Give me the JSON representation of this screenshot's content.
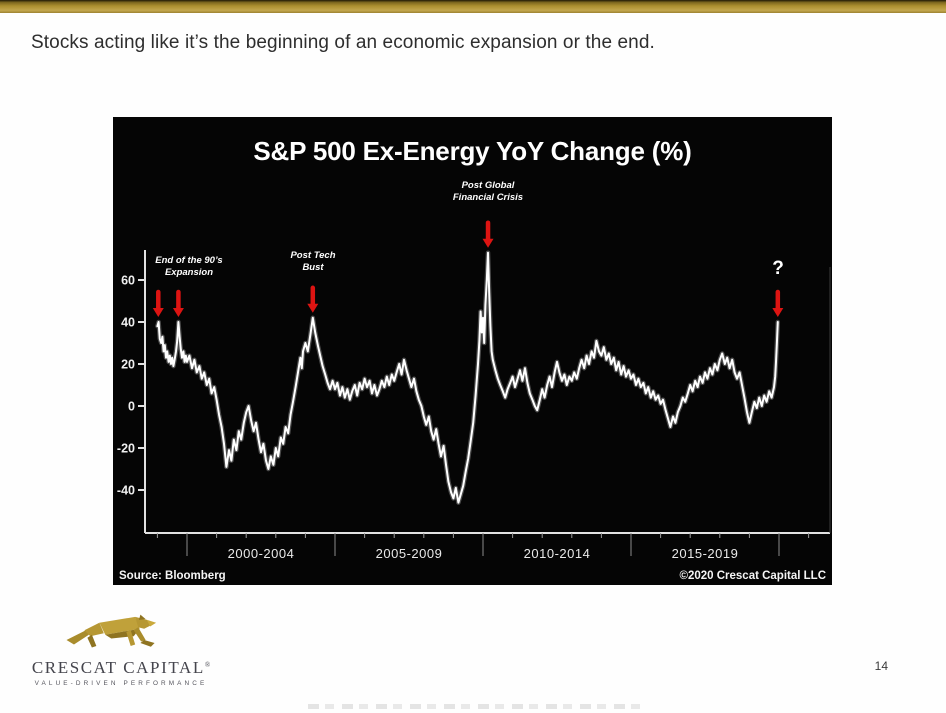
{
  "slide": {
    "heading": "Stocks acting like it’s the beginning of an economic expansion or the end.",
    "page_number": "14"
  },
  "logo": {
    "name": "CRESCAT CAPITAL",
    "registered": "®",
    "tagline": "VALUE-DRIVEN PERFORMANCE",
    "brand_gold": "#ab8e2f"
  },
  "chart_data": {
    "type": "line",
    "title": "S&P 500 Ex-Energy YoY Change (%)",
    "source": "Source: Bloomberg",
    "copyright": "©2020 Crescat Capital LLC",
    "background": "#050505",
    "line_color": "#ffffff",
    "arrow_color": "#dd1412",
    "grid": false,
    "legend": "none",
    "ylim": [
      -55,
      80
    ],
    "yticks": [
      60,
      40,
      20,
      0,
      -20,
      -40
    ],
    "x_separator_years": [
      2000,
      2005,
      2010,
      2015,
      2020
    ],
    "x_period_labels": [
      "2000-2004",
      "2005-2009",
      "2010-2014",
      "2015-2019"
    ],
    "annotations": [
      {
        "id": "nineties",
        "line1": "End of the 90’s",
        "line2": "Expansion",
        "arrow_years": [
          1999.03,
          1999.71
        ],
        "points_to_value": 40
      },
      {
        "id": "tech",
        "line1": "Post Tech",
        "line2": "Bust",
        "arrow_years": [
          2004.25
        ],
        "points_to_value": 42
      },
      {
        "id": "gfc",
        "line1": "Post Global",
        "line2": "Financial Crisis",
        "arrow_years": [
          2010.17
        ],
        "points_to_value": 73
      },
      {
        "id": "question",
        "line1": "?",
        "line2": "",
        "arrow_years": [
          2019.96
        ],
        "points_to_value": 40
      }
    ],
    "series": [
      {
        "name": "S&P 500 Ex-Energy YoY Change (%)",
        "points": [
          [
            1999.0,
            38
          ],
          [
            1999.04,
            40
          ],
          [
            1999.08,
            32
          ],
          [
            1999.13,
            30
          ],
          [
            1999.17,
            33
          ],
          [
            1999.21,
            26
          ],
          [
            1999.25,
            29
          ],
          [
            1999.29,
            23
          ],
          [
            1999.33,
            26
          ],
          [
            1999.38,
            21
          ],
          [
            1999.42,
            24
          ],
          [
            1999.46,
            20
          ],
          [
            1999.5,
            23
          ],
          [
            1999.54,
            19
          ],
          [
            1999.58,
            22
          ],
          [
            1999.63,
            26
          ],
          [
            1999.67,
            31
          ],
          [
            1999.71,
            40
          ],
          [
            1999.75,
            33
          ],
          [
            1999.79,
            27
          ],
          [
            1999.83,
            23
          ],
          [
            1999.88,
            26
          ],
          [
            1999.92,
            21
          ],
          [
            1999.96,
            24
          ],
          [
            2000.0,
            21
          ],
          [
            2000.08,
            24
          ],
          [
            2000.17,
            18
          ],
          [
            2000.25,
            22
          ],
          [
            2000.33,
            16
          ],
          [
            2000.42,
            19
          ],
          [
            2000.5,
            13
          ],
          [
            2000.58,
            16
          ],
          [
            2000.67,
            10
          ],
          [
            2000.75,
            13
          ],
          [
            2000.83,
            6
          ],
          [
            2000.92,
            9
          ],
          [
            2001.0,
            3
          ],
          [
            2001.08,
            -4
          ],
          [
            2001.17,
            -10
          ],
          [
            2001.25,
            -18
          ],
          [
            2001.33,
            -29
          ],
          [
            2001.42,
            -21
          ],
          [
            2001.5,
            -26
          ],
          [
            2001.58,
            -16
          ],
          [
            2001.67,
            -21
          ],
          [
            2001.75,
            -12
          ],
          [
            2001.83,
            -16
          ],
          [
            2001.92,
            -8
          ],
          [
            2002.0,
            -3
          ],
          [
            2002.08,
            0
          ],
          [
            2002.17,
            -7
          ],
          [
            2002.25,
            -12
          ],
          [
            2002.33,
            -8
          ],
          [
            2002.42,
            -16
          ],
          [
            2002.5,
            -22
          ],
          [
            2002.58,
            -18
          ],
          [
            2002.67,
            -26
          ],
          [
            2002.75,
            -30
          ],
          [
            2002.83,
            -24
          ],
          [
            2002.92,
            -28
          ],
          [
            2003.0,
            -20
          ],
          [
            2003.08,
            -24
          ],
          [
            2003.17,
            -15
          ],
          [
            2003.25,
            -18
          ],
          [
            2003.33,
            -10
          ],
          [
            2003.42,
            -13
          ],
          [
            2003.5,
            -4
          ],
          [
            2003.58,
            2
          ],
          [
            2003.67,
            9
          ],
          [
            2003.75,
            16
          ],
          [
            2003.83,
            23
          ],
          [
            2003.88,
            18
          ],
          [
            2003.92,
            26
          ],
          [
            2004.0,
            30
          ],
          [
            2004.08,
            26
          ],
          [
            2004.17,
            34
          ],
          [
            2004.25,
            42
          ],
          [
            2004.33,
            35
          ],
          [
            2004.42,
            29
          ],
          [
            2004.5,
            24
          ],
          [
            2004.58,
            19
          ],
          [
            2004.67,
            15
          ],
          [
            2004.75,
            11
          ],
          [
            2004.83,
            8
          ],
          [
            2004.92,
            12
          ],
          [
            2005.0,
            8
          ],
          [
            2005.08,
            11
          ],
          [
            2005.17,
            5
          ],
          [
            2005.25,
            9
          ],
          [
            2005.33,
            4
          ],
          [
            2005.42,
            8
          ],
          [
            2005.5,
            3
          ],
          [
            2005.58,
            7
          ],
          [
            2005.67,
            10
          ],
          [
            2005.75,
            5
          ],
          [
            2005.83,
            11
          ],
          [
            2005.92,
            8
          ],
          [
            2006.0,
            13
          ],
          [
            2006.08,
            9
          ],
          [
            2006.17,
            12
          ],
          [
            2006.25,
            6
          ],
          [
            2006.33,
            10
          ],
          [
            2006.42,
            5
          ],
          [
            2006.5,
            8
          ],
          [
            2006.58,
            12
          ],
          [
            2006.67,
            9
          ],
          [
            2006.75,
            14
          ],
          [
            2006.83,
            10
          ],
          [
            2006.92,
            15
          ],
          [
            2007.0,
            12
          ],
          [
            2007.08,
            16
          ],
          [
            2007.17,
            20
          ],
          [
            2007.25,
            15
          ],
          [
            2007.33,
            22
          ],
          [
            2007.42,
            17
          ],
          [
            2007.5,
            13
          ],
          [
            2007.58,
            9
          ],
          [
            2007.67,
            13
          ],
          [
            2007.75,
            7
          ],
          [
            2007.83,
            3
          ],
          [
            2007.92,
            0
          ],
          [
            2008.0,
            -5
          ],
          [
            2008.08,
            -9
          ],
          [
            2008.17,
            -5
          ],
          [
            2008.25,
            -12
          ],
          [
            2008.33,
            -16
          ],
          [
            2008.42,
            -11
          ],
          [
            2008.5,
            -18
          ],
          [
            2008.58,
            -24
          ],
          [
            2008.67,
            -19
          ],
          [
            2008.75,
            -28
          ],
          [
            2008.83,
            -36
          ],
          [
            2008.92,
            -41
          ],
          [
            2009.0,
            -44
          ],
          [
            2009.08,
            -39
          ],
          [
            2009.17,
            -46
          ],
          [
            2009.25,
            -42
          ],
          [
            2009.33,
            -38
          ],
          [
            2009.42,
            -31
          ],
          [
            2009.5,
            -25
          ],
          [
            2009.58,
            -17
          ],
          [
            2009.67,
            -8
          ],
          [
            2009.75,
            5
          ],
          [
            2009.83,
            20
          ],
          [
            2009.88,
            31
          ],
          [
            2009.92,
            45
          ],
          [
            2009.96,
            35
          ],
          [
            2010.0,
            42
          ],
          [
            2010.04,
            30
          ],
          [
            2010.08,
            48
          ],
          [
            2010.13,
            60
          ],
          [
            2010.17,
            73
          ],
          [
            2010.21,
            54
          ],
          [
            2010.25,
            38
          ],
          [
            2010.29,
            26
          ],
          [
            2010.33,
            22
          ],
          [
            2010.42,
            17
          ],
          [
            2010.5,
            13
          ],
          [
            2010.58,
            10
          ],
          [
            2010.67,
            7
          ],
          [
            2010.75,
            4
          ],
          [
            2010.83,
            8
          ],
          [
            2010.92,
            11
          ],
          [
            2011.0,
            14
          ],
          [
            2011.08,
            9
          ],
          [
            2011.17,
            13
          ],
          [
            2011.25,
            17
          ],
          [
            2011.33,
            12
          ],
          [
            2011.42,
            18
          ],
          [
            2011.5,
            11
          ],
          [
            2011.58,
            6
          ],
          [
            2011.67,
            3
          ],
          [
            2011.75,
            0
          ],
          [
            2011.83,
            -2
          ],
          [
            2011.92,
            3
          ],
          [
            2012.0,
            8
          ],
          [
            2012.08,
            4
          ],
          [
            2012.17,
            10
          ],
          [
            2012.25,
            14
          ],
          [
            2012.33,
            9
          ],
          [
            2012.42,
            16
          ],
          [
            2012.5,
            21
          ],
          [
            2012.58,
            16
          ],
          [
            2012.67,
            12
          ],
          [
            2012.75,
            15
          ],
          [
            2012.83,
            10
          ],
          [
            2012.92,
            14
          ],
          [
            2013.0,
            12
          ],
          [
            2013.08,
            16
          ],
          [
            2013.17,
            13
          ],
          [
            2013.25,
            18
          ],
          [
            2013.33,
            22
          ],
          [
            2013.42,
            18
          ],
          [
            2013.5,
            24
          ],
          [
            2013.58,
            20
          ],
          [
            2013.67,
            26
          ],
          [
            2013.75,
            23
          ],
          [
            2013.83,
            31
          ],
          [
            2013.92,
            26
          ],
          [
            2014.0,
            24
          ],
          [
            2014.08,
            28
          ],
          [
            2014.17,
            22
          ],
          [
            2014.25,
            25
          ],
          [
            2014.33,
            20
          ],
          [
            2014.42,
            23
          ],
          [
            2014.5,
            17
          ],
          [
            2014.58,
            21
          ],
          [
            2014.67,
            15
          ],
          [
            2014.75,
            19
          ],
          [
            2014.83,
            14
          ],
          [
            2014.92,
            17
          ],
          [
            2015.0,
            13
          ],
          [
            2015.08,
            15
          ],
          [
            2015.17,
            10
          ],
          [
            2015.25,
            13
          ],
          [
            2015.33,
            9
          ],
          [
            2015.42,
            11
          ],
          [
            2015.5,
            6
          ],
          [
            2015.58,
            9
          ],
          [
            2015.67,
            4
          ],
          [
            2015.75,
            7
          ],
          [
            2015.83,
            3
          ],
          [
            2015.92,
            5
          ],
          [
            2016.0,
            1
          ],
          [
            2016.08,
            3
          ],
          [
            2016.17,
            -2
          ],
          [
            2016.25,
            -6
          ],
          [
            2016.33,
            -10
          ],
          [
            2016.42,
            -5
          ],
          [
            2016.5,
            -8
          ],
          [
            2016.58,
            -3
          ],
          [
            2016.67,
            0
          ],
          [
            2016.75,
            4
          ],
          [
            2016.83,
            2
          ],
          [
            2016.92,
            6
          ],
          [
            2017.0,
            10
          ],
          [
            2017.08,
            7
          ],
          [
            2017.17,
            12
          ],
          [
            2017.25,
            9
          ],
          [
            2017.33,
            14
          ],
          [
            2017.42,
            11
          ],
          [
            2017.5,
            16
          ],
          [
            2017.58,
            13
          ],
          [
            2017.67,
            18
          ],
          [
            2017.75,
            15
          ],
          [
            2017.83,
            20
          ],
          [
            2017.92,
            17
          ],
          [
            2018.0,
            22
          ],
          [
            2018.08,
            25
          ],
          [
            2018.17,
            20
          ],
          [
            2018.25,
            23
          ],
          [
            2018.33,
            18
          ],
          [
            2018.42,
            22
          ],
          [
            2018.5,
            16
          ],
          [
            2018.58,
            13
          ],
          [
            2018.67,
            16
          ],
          [
            2018.75,
            10
          ],
          [
            2018.83,
            4
          ],
          [
            2018.92,
            -3
          ],
          [
            2019.0,
            -8
          ],
          [
            2019.08,
            -3
          ],
          [
            2019.17,
            2
          ],
          [
            2019.25,
            -1
          ],
          [
            2019.33,
            4
          ],
          [
            2019.42,
            0
          ],
          [
            2019.5,
            5
          ],
          [
            2019.58,
            2
          ],
          [
            2019.67,
            7
          ],
          [
            2019.75,
            4
          ],
          [
            2019.83,
            9
          ],
          [
            2019.87,
            14
          ],
          [
            2019.9,
            21
          ],
          [
            2019.93,
            30
          ],
          [
            2019.96,
            40
          ]
        ]
      }
    ]
  }
}
